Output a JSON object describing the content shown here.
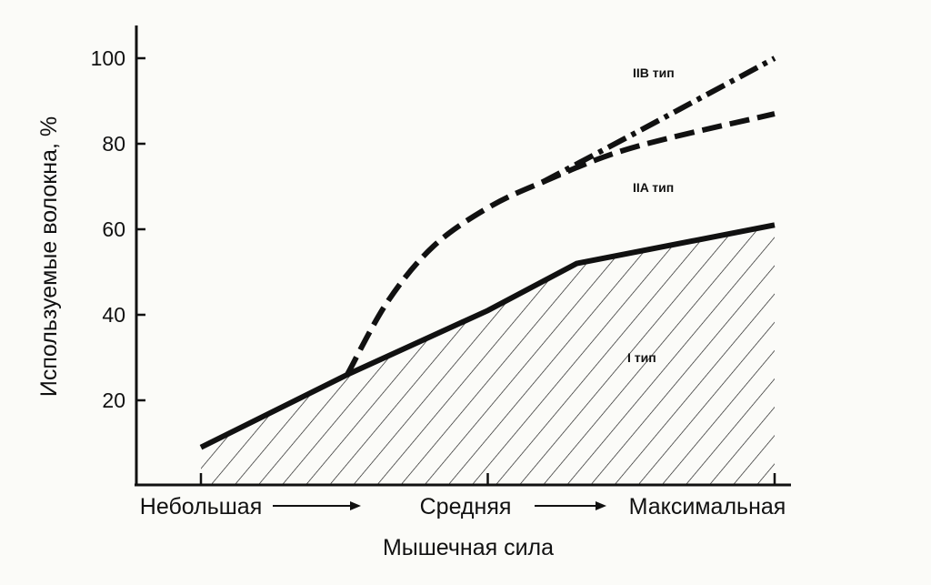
{
  "chart_data": {
    "type": "line",
    "title": "",
    "xlabel": "Мышечная сила",
    "ylabel": "Используемые волокна, %",
    "x_categories": [
      "Небольшая",
      "Средняя",
      "Максимальная"
    ],
    "x_arrow": "→",
    "xlim": [
      0,
      2
    ],
    "ylim": [
      0,
      105
    ],
    "yticks": [
      20,
      40,
      60,
      80,
      100
    ],
    "grid": false,
    "legend": "none",
    "series": [
      {
        "name": "I тип",
        "style": "solid",
        "hatched_area": true,
        "points": [
          [
            0,
            9
          ],
          [
            0.51,
            26
          ],
          [
            1.0,
            41
          ],
          [
            1.31,
            52
          ],
          [
            2.0,
            61
          ]
        ]
      },
      {
        "name": "IIA тип",
        "style": "dashed",
        "points": [
          [
            0.51,
            26
          ],
          [
            0.65,
            43
          ],
          [
            0.81,
            56
          ],
          [
            1.0,
            65
          ],
          [
            1.19,
            71
          ],
          [
            1.5,
            79
          ],
          [
            2.0,
            87
          ]
        ]
      },
      {
        "name": "IIB тип",
        "style": "dash-dot",
        "points": [
          [
            1.19,
            71
          ],
          [
            1.5,
            82
          ],
          [
            1.75,
            91
          ],
          [
            2.0,
            100
          ]
        ]
      }
    ],
    "color": "#111111"
  }
}
